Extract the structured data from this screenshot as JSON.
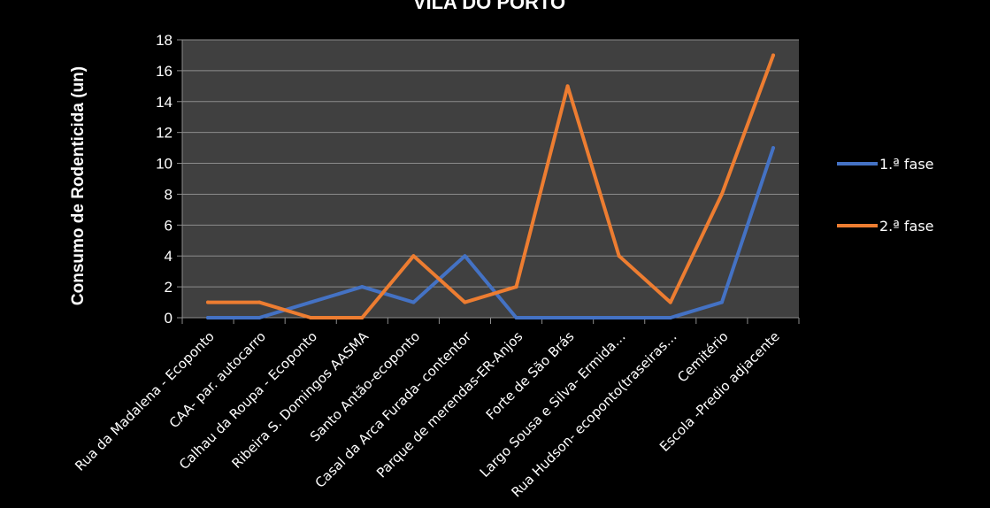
{
  "chart_data": {
    "type": "line",
    "title": "VILA DO PORTO",
    "xlabel": "",
    "ylabel": "Consumo de Rodenticida  (un)",
    "ylim": [
      0,
      18
    ],
    "yticks": [
      0,
      2,
      4,
      6,
      8,
      10,
      12,
      14,
      16,
      18
    ],
    "grid": true,
    "legend_position": "right",
    "categories": [
      "Rua da Madalena - Ecoponto",
      "CAA- par. autocarro",
      "Calhau da Roupa - Ecoponto",
      "Ribeira S. Domingos AASMA",
      "Santo Antão-ecoponto",
      "Casal da Arca Furada- contentor",
      "Parque de merendas-ER-Anjos",
      "Forte de São Brás",
      "Largo Sousa e Silva- Ermida…",
      "Rua Hudson- ecoponto(traseiras…",
      "Cemitério",
      "Escola -Predio adjacente"
    ],
    "series": [
      {
        "name": "1.ª fase",
        "color": "#4472C4",
        "values": [
          0,
          0,
          1,
          2,
          1,
          4,
          0,
          0,
          0,
          0,
          1,
          11
        ]
      },
      {
        "name": "2.ª fase",
        "color": "#ED7D31",
        "values": [
          1,
          1,
          0,
          0,
          4,
          1,
          2,
          15,
          4,
          1,
          8,
          17
        ]
      }
    ],
    "plot_background": "#404040",
    "gridline_color": "#8c8c8c"
  }
}
